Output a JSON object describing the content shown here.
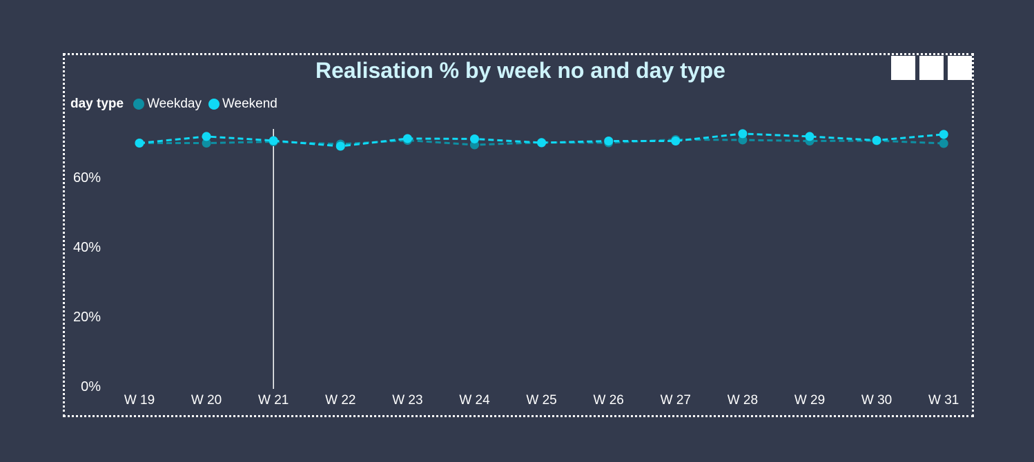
{
  "title": "Realisation % by week no and day type",
  "legend": {
    "title": "day type",
    "items": [
      {
        "label": "Weekday",
        "color": "#0e8fa3"
      },
      {
        "label": "Weekend",
        "color": "#10d9f5"
      }
    ]
  },
  "colors": {
    "background": "#333a4d",
    "title": "#cdf3fb",
    "axis_text": "#ffffff"
  },
  "chart_data": {
    "type": "line",
    "title": "Realisation % by week no and day type",
    "categories": [
      "W 19",
      "W 20",
      "W 21",
      "W 22",
      "W 23",
      "W 24",
      "W 25",
      "W 26",
      "W 27",
      "W 28",
      "W 29",
      "W 30",
      "W 31"
    ],
    "series": [
      {
        "name": "Weekday",
        "color": "#0e8fa3",
        "values": [
          69.8,
          69.8,
          70.2,
          69.5,
          70.6,
          69.3,
          70.0,
          69.9,
          70.8,
          70.7,
          70.4,
          70.5,
          69.7
        ]
      },
      {
        "name": "Weekend",
        "color": "#10d9f5",
        "values": [
          69.8,
          71.7,
          70.5,
          68.9,
          71.1,
          71.0,
          69.9,
          70.4,
          70.4,
          72.5,
          71.7,
          70.6,
          72.3
        ]
      }
    ],
    "y_ticks": [
      {
        "value": 0,
        "label": "0%"
      },
      {
        "value": 20,
        "label": "20%"
      },
      {
        "value": 40,
        "label": "40%"
      },
      {
        "value": 60,
        "label": "60%"
      }
    ],
    "ylim": [
      0,
      74.5
    ],
    "line_style": "dashed",
    "hover_category": "W 21",
    "grid": false,
    "legend_position": "top-left"
  }
}
